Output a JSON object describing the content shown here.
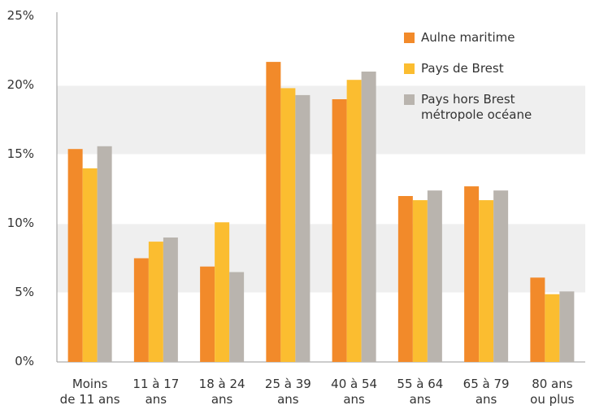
{
  "chart_data": {
    "type": "bar",
    "categories": [
      "Moins\nde 11 ans",
      "11 à 17\nans",
      "18 à 24\nans",
      "25 à 39\nans",
      "40 à 54\nans",
      "55 à 64\nans",
      "65 à 79\nans",
      "80 ans\nou plus"
    ],
    "series": [
      {
        "name": "Aulne maritime",
        "color": "#f28a2a",
        "values": [
          15.4,
          7.5,
          6.9,
          21.7,
          19.0,
          12.0,
          12.7,
          6.1
        ]
      },
      {
        "name": "Pays de Brest",
        "color": "#fbbd30",
        "values": [
          14.0,
          8.7,
          10.1,
          19.8,
          20.4,
          11.7,
          11.7,
          4.9
        ]
      },
      {
        "name": "Pays hors Brest\nmétropole océane",
        "color": "#b9b4ae",
        "values": [
          15.6,
          9.0,
          6.5,
          19.3,
          21.0,
          12.4,
          12.4,
          5.1
        ]
      }
    ],
    "ylim": [
      0,
      25
    ],
    "yticks": [
      {
        "value": 0,
        "label": "0%"
      },
      {
        "value": 5,
        "label": "5%"
      },
      {
        "value": 10,
        "label": "10%"
      },
      {
        "value": 15,
        "label": "15%"
      },
      {
        "value": 20,
        "label": "20%"
      },
      {
        "value": 25,
        "label": "25%"
      }
    ],
    "grid": true,
    "legend": "top-right"
  }
}
